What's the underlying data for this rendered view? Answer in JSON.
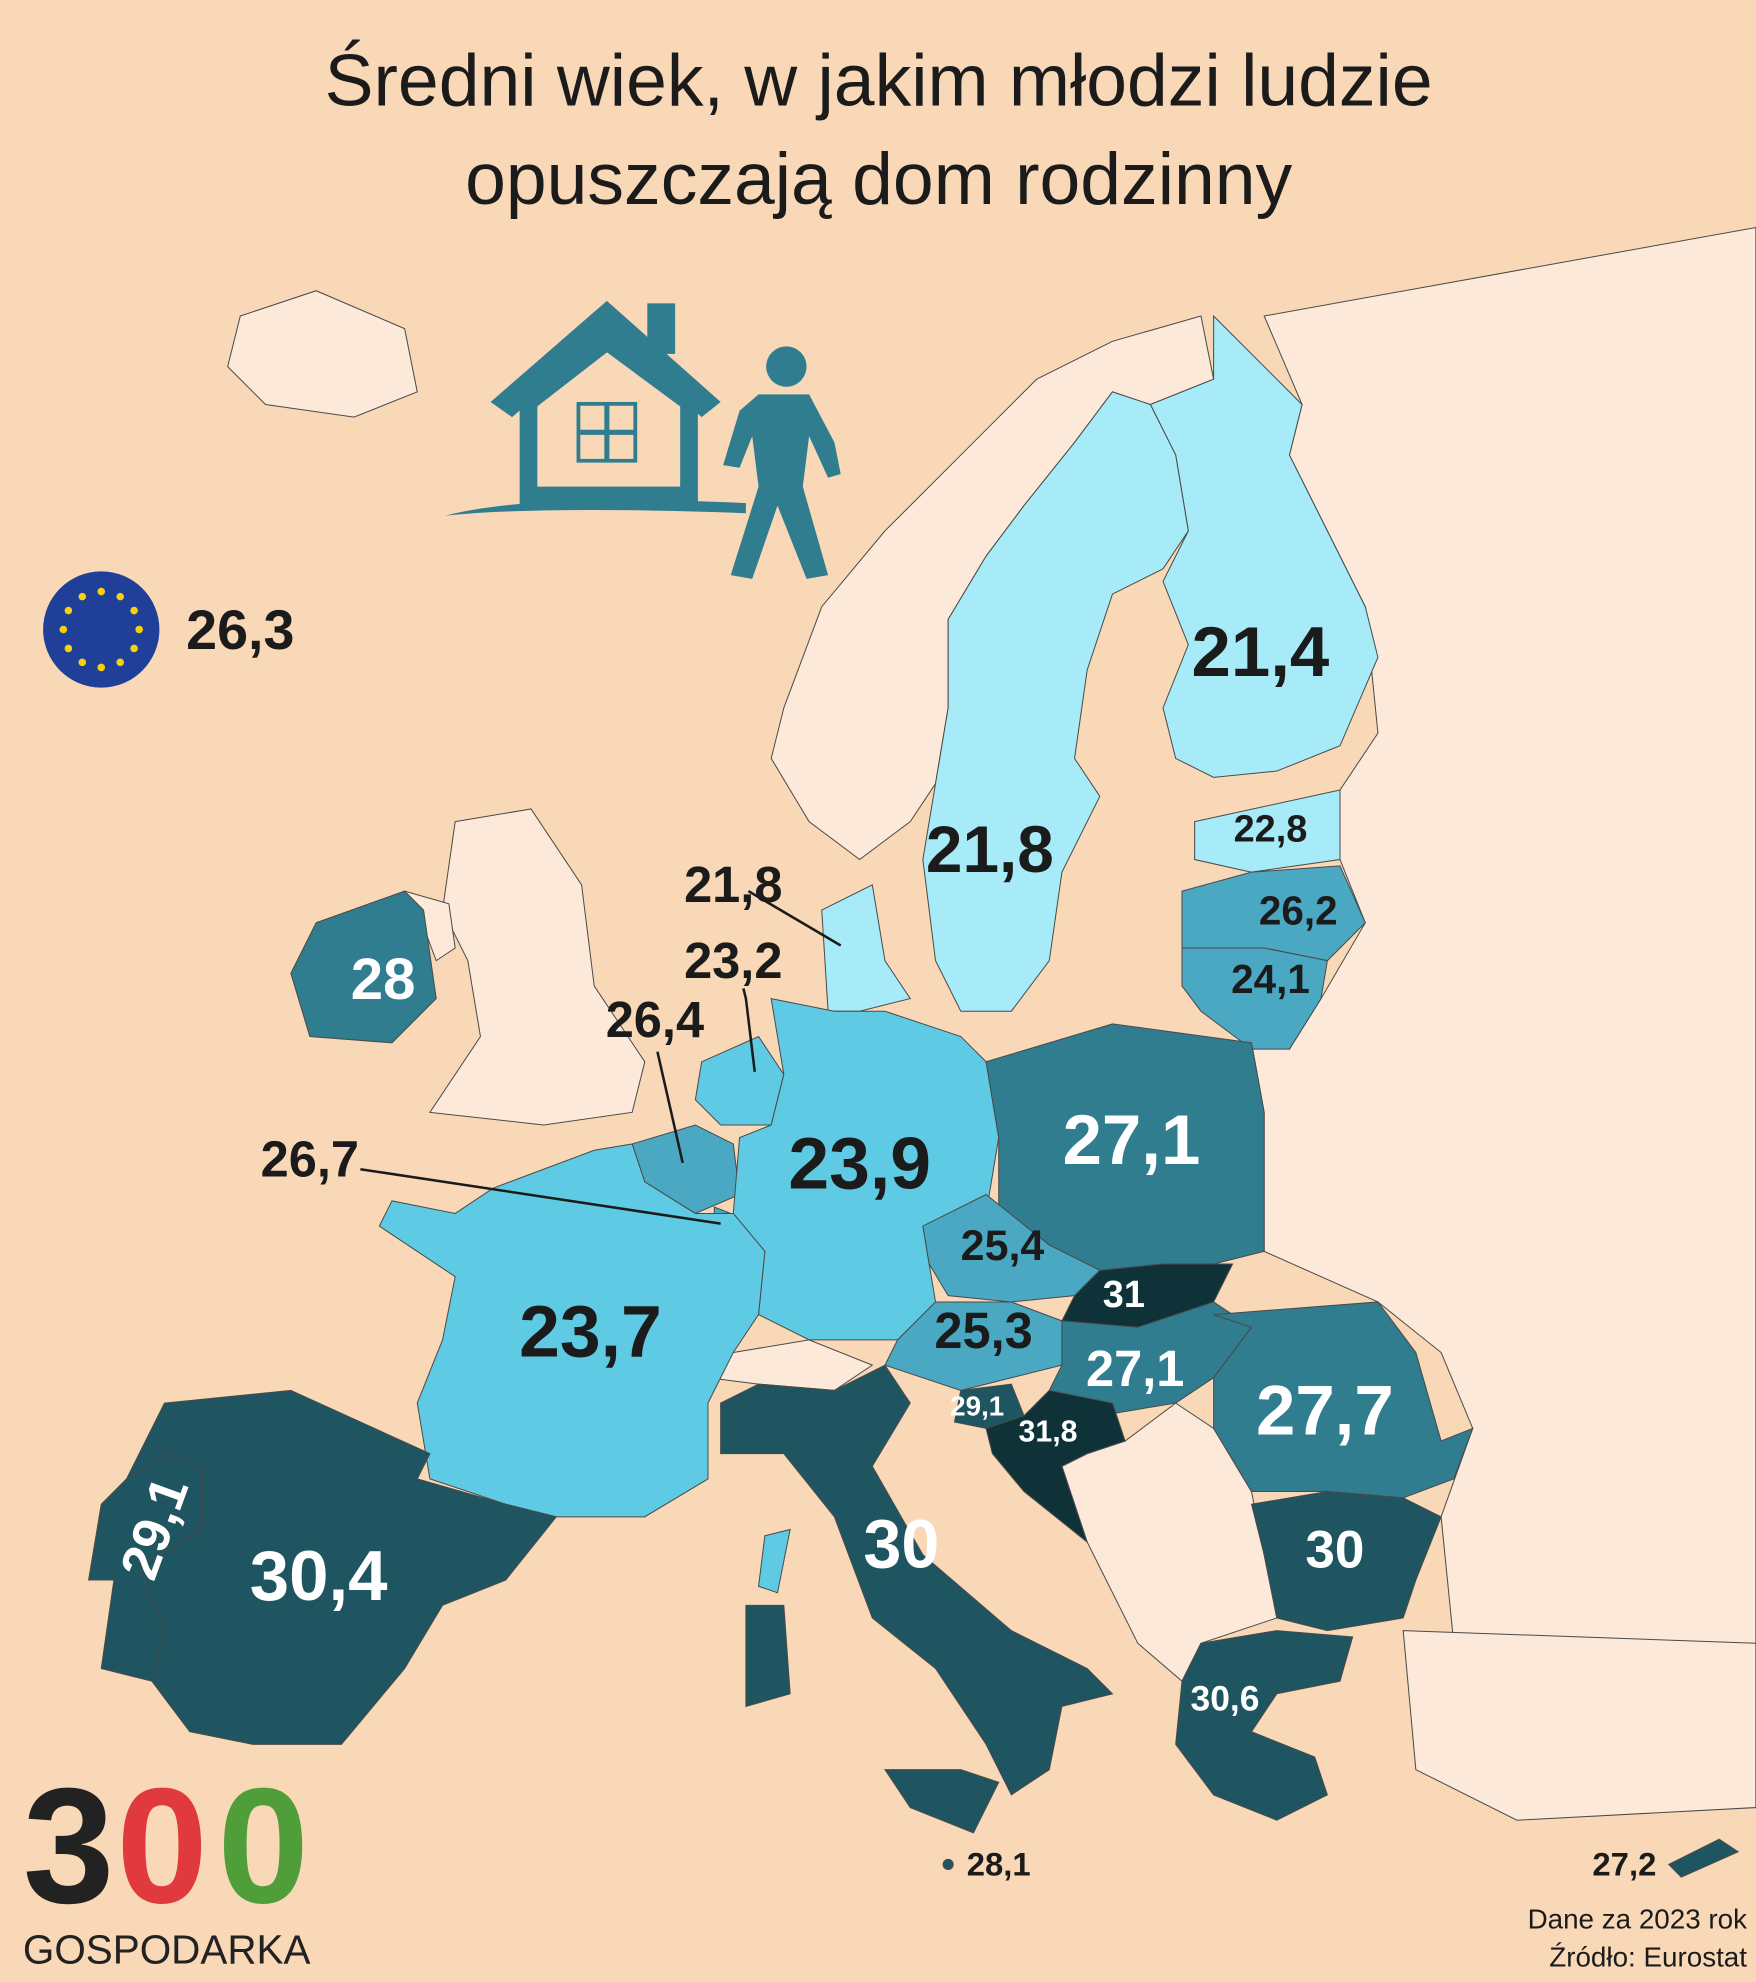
{
  "title": [
    "Średni wiek, w jakim młodzi ludzie",
    "opuszczają dom rodzinny"
  ],
  "eu_value": "26,3",
  "map": {
    "values": [
      "21,4",
      "21,8",
      "22,8",
      "26,2",
      "24,1",
      "28",
      "21,8",
      "23,2",
      "26,4",
      "26,7",
      "23,9",
      "27,1",
      "25,4",
      "31",
      "25,3",
      "27,1",
      "27,7",
      "23,7",
      "29,1",
      "31,8",
      "30",
      "30",
      "29,1",
      "30,4",
      "30,6",
      "28,1",
      "27,2"
    ]
  },
  "footer": [
    "Dane za 2023 rok",
    "Źródło: Eurostat"
  ],
  "logo": {
    "digits": [
      "3",
      "0",
      "0"
    ],
    "name": "GOSPODARKA"
  }
}
